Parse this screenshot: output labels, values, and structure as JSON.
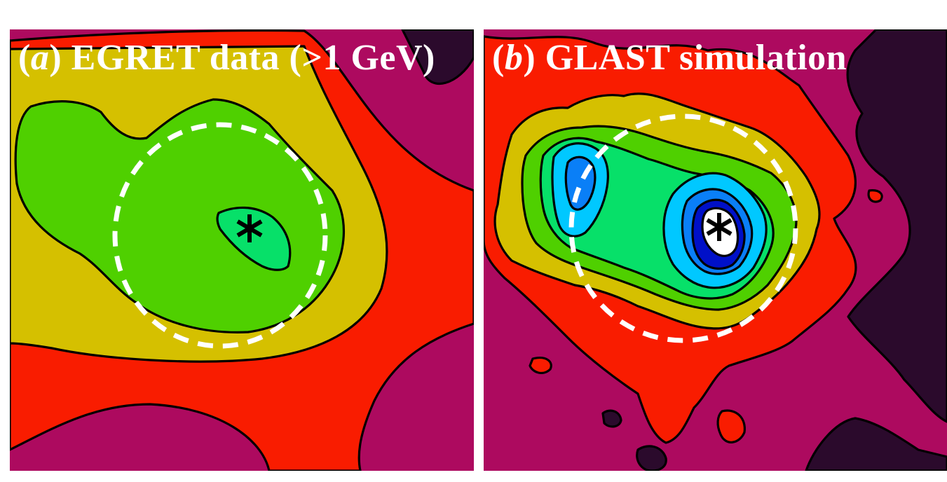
{
  "colors": {
    "level0": "#2b0a2c",
    "level1": "#ad0a5f",
    "level2": "#f91c00",
    "level3": "#d5c000",
    "level4": "#4fd000",
    "level5": "#07e069",
    "level6": "#00c8ff",
    "level7": "#0a7ff7",
    "level8": "#0010c8",
    "level9": "#ffffff",
    "circle": "#ffffff",
    "marker": "#000000"
  },
  "chart_data": [
    {
      "type": "heatmap",
      "subtype": "filled-contour",
      "title": {
        "letter": "a",
        "text": "EGRET data (>1 GeV)"
      },
      "xlabel": "",
      "ylabel": "",
      "contour_levels_visible": 5,
      "peak_level": 5,
      "source_marker": "asterisk",
      "region_outline": "dashed circle",
      "grid": false,
      "legend": "none"
    },
    {
      "type": "heatmap",
      "subtype": "filled-contour",
      "title": {
        "letter": "b",
        "text": "GLAST simulation"
      },
      "xlabel": "",
      "ylabel": "",
      "contour_levels_visible": 10,
      "peak_level": 9,
      "source_marker": "asterisk",
      "region_outline": "dashed circle",
      "grid": false,
      "legend": "none"
    }
  ]
}
